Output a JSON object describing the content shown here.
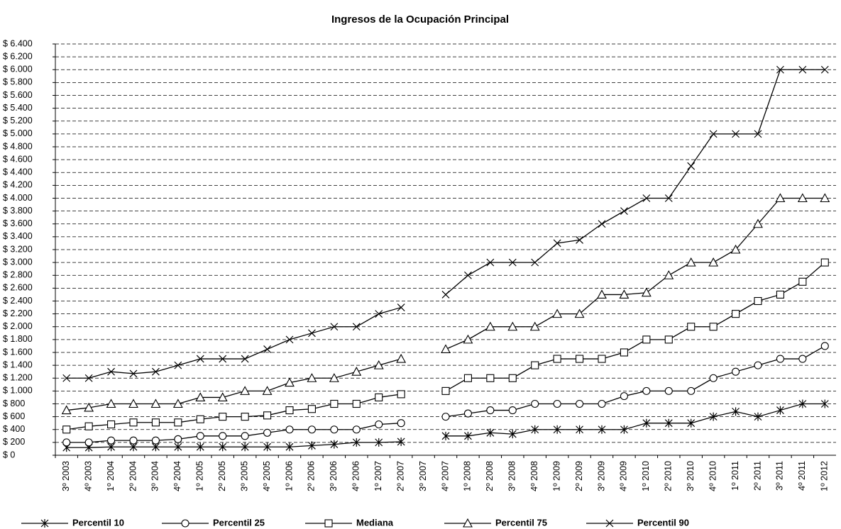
{
  "chart_data": {
    "type": "line",
    "title": "Ingresos de la Ocupación Principal",
    "categories": [
      "3º 2003",
      "4º 2003",
      "1º 2004",
      "2º 2004",
      "3º 2004",
      "4º 2004",
      "1º 2005",
      "2º 2005",
      "3º 2005",
      "4º 2005",
      "1º 2006",
      "2º 2006",
      "3º 2006",
      "4º 2006",
      "1º 2007",
      "2º 2007",
      "3º 2007",
      "4º 2007",
      "1º 2008",
      "2º 2008",
      "3º 2008",
      "4º 2008",
      "1º 2009",
      "2º 2009",
      "3º 2009",
      "4º 2009",
      "1º 2010",
      "2º 2010",
      "3º 2010",
      "4º 2010",
      "1º 2011",
      "2º 2011",
      "3º 2011",
      "4º 2011",
      "1º 2012"
    ],
    "series": [
      {
        "name": "Percentil 10",
        "color": "#000000",
        "marker": "asterisk",
        "values": [
          120,
          120,
          130,
          130,
          130,
          130,
          130,
          130,
          130,
          130,
          130,
          150,
          170,
          200,
          200,
          210,
          null,
          300,
          300,
          350,
          330,
          400,
          400,
          400,
          400,
          400,
          500,
          500,
          500,
          600,
          680,
          600,
          700,
          800,
          800
        ]
      },
      {
        "name": "Percentil 25",
        "color": "#000000",
        "marker": "circle",
        "values": [
          200,
          200,
          230,
          230,
          230,
          250,
          300,
          300,
          300,
          350,
          400,
          400,
          400,
          400,
          480,
          500,
          null,
          600,
          650,
          700,
          700,
          800,
          800,
          800,
          800,
          920,
          1000,
          1000,
          1000,
          1200,
          1300,
          1400,
          1500,
          1500,
          1700
        ]
      },
      {
        "name": "Mediana",
        "color": "#000000",
        "marker": "square",
        "values": [
          400,
          450,
          480,
          510,
          510,
          510,
          560,
          600,
          600,
          620,
          700,
          720,
          800,
          800,
          900,
          950,
          null,
          1000,
          1200,
          1200,
          1200,
          1400,
          1500,
          1500,
          1500,
          1600,
          1800,
          1800,
          2000,
          2000,
          2200,
          2400,
          2500,
          2700,
          3000
        ]
      },
      {
        "name": "Percentil 75",
        "color": "#000000",
        "marker": "triangle",
        "values": [
          700,
          740,
          800,
          800,
          800,
          800,
          900,
          900,
          1000,
          1000,
          1130,
          1200,
          1200,
          1300,
          1400,
          1500,
          null,
          1650,
          1800,
          2000,
          2000,
          2000,
          2200,
          2200,
          2500,
          2500,
          2530,
          2800,
          3000,
          3000,
          3200,
          3600,
          4000,
          4000,
          4000
        ]
      },
      {
        "name": "Percentil 90",
        "color": "#000000",
        "marker": "x",
        "values": [
          1200,
          1200,
          1300,
          1270,
          1300,
          1400,
          1500,
          1500,
          1500,
          1650,
          1800,
          1900,
          2000,
          2000,
          2200,
          2300,
          null,
          2500,
          2800,
          3000,
          3000,
          3000,
          3300,
          3350,
          3600,
          3800,
          4000,
          4000,
          4500,
          5000,
          5000,
          5000,
          6000,
          6000,
          6000
        ]
      }
    ],
    "ylim": [
      0,
      6400
    ],
    "yticks": [
      {
        "value": 0,
        "label": "$ 0"
      },
      {
        "value": 200,
        "label": "$ 200"
      },
      {
        "value": 400,
        "label": "$ 400"
      },
      {
        "value": 600,
        "label": "$ 600"
      },
      {
        "value": 800,
        "label": "$ 800"
      },
      {
        "value": 1000,
        "label": "$ 1.000"
      },
      {
        "value": 1200,
        "label": "$ 1.200"
      },
      {
        "value": 1400,
        "label": "$ 1.400"
      },
      {
        "value": 1600,
        "label": "$ 1.600"
      },
      {
        "value": 1800,
        "label": "$ 1.800"
      },
      {
        "value": 2000,
        "label": "$ 2.000"
      },
      {
        "value": 2200,
        "label": "$ 2.200"
      },
      {
        "value": 2400,
        "label": "$ 2.400"
      },
      {
        "value": 2600,
        "label": "$ 2.600"
      },
      {
        "value": 2800,
        "label": "$ 2.800"
      },
      {
        "value": 3000,
        "label": "$ 3.000"
      },
      {
        "value": 3200,
        "label": "$ 3.200"
      },
      {
        "value": 3400,
        "label": "$ 3.400"
      },
      {
        "value": 3600,
        "label": "$ 3.600"
      },
      {
        "value": 3800,
        "label": "$ 3.800"
      },
      {
        "value": 4000,
        "label": "$ 4.000"
      },
      {
        "value": 4200,
        "label": "$ 4.200"
      },
      {
        "value": 4400,
        "label": "$ 4.400"
      },
      {
        "value": 4600,
        "label": "$ 4.600"
      },
      {
        "value": 4800,
        "label": "$ 4.800"
      },
      {
        "value": 5000,
        "label": "$ 5.000"
      },
      {
        "value": 5200,
        "label": "$ 5.200"
      },
      {
        "value": 5400,
        "label": "$ 5.400"
      },
      {
        "value": 5600,
        "label": "$ 5.600"
      },
      {
        "value": 5800,
        "label": "$ 5.800"
      },
      {
        "value": 6000,
        "label": "$ 6.000"
      },
      {
        "value": 6200,
        "label": "$ 6.200"
      },
      {
        "value": 6400,
        "label": "$ 6.400"
      }
    ],
    "grid": true,
    "legend": "bottom"
  }
}
